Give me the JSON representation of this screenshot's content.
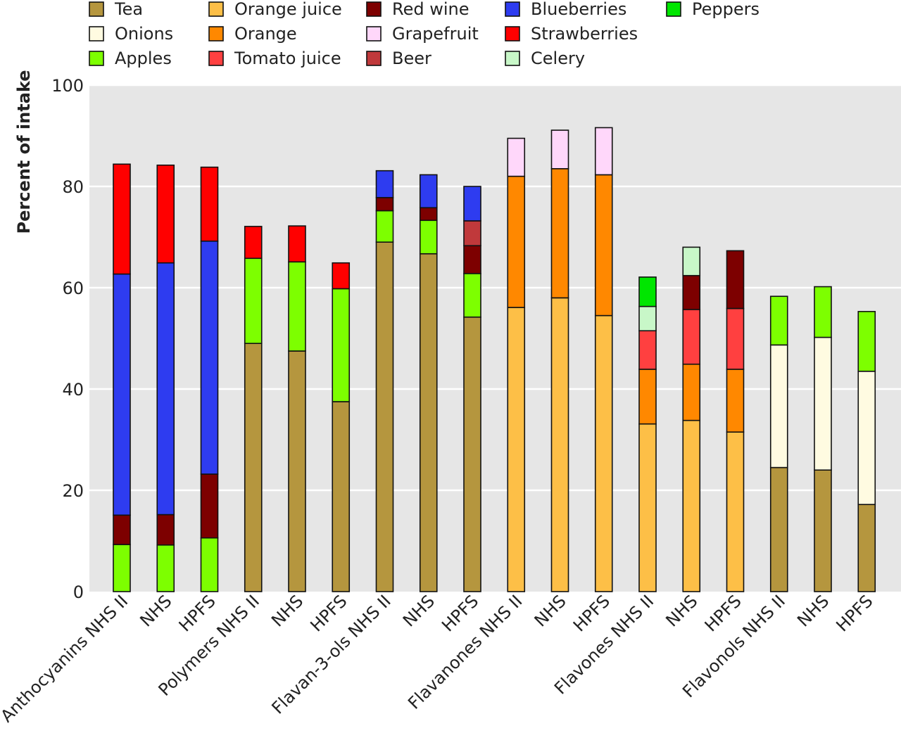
{
  "chart_data": {
    "type": "bar",
    "stacked": true,
    "ylabel": "Percent of intake",
    "ylim": [
      0,
      100
    ],
    "yticks": [
      0,
      20,
      40,
      60,
      80,
      100
    ],
    "grid": true,
    "legend_position": "top",
    "categories": [
      "Anthocyanins NHS II",
      "NHS",
      "HPFS",
      "Polymers NHS II",
      "NHS",
      "HPFS",
      "Flavan-3-ols NHS II",
      "NHS",
      "HPFS",
      "Flavanones NHS II",
      "NHS",
      "HPFS",
      "Flavones NHS II",
      "NHS",
      "HPFS",
      "Flavonols NHS II",
      "NHS",
      "HPFS"
    ],
    "series": [
      {
        "name": "Tea",
        "color": "#b5963e",
        "values": [
          0,
          0,
          0,
          49,
          47.5,
          37.5,
          69,
          66.7,
          54.2,
          0,
          0,
          0,
          0,
          0,
          0,
          24.5,
          24,
          17.2
        ]
      },
      {
        "name": "Orange juice",
        "color": "#fdbf47",
        "values": [
          0,
          0,
          0,
          0,
          0,
          0,
          0,
          0,
          0,
          56.1,
          58,
          54.5,
          33.1,
          33.8,
          31.5,
          0,
          0,
          0
        ]
      },
      {
        "name": "Orange",
        "color": "#ff8800",
        "values": [
          0,
          0,
          0,
          0,
          0,
          0,
          0,
          0,
          0,
          25.9,
          25.5,
          27.8,
          10.8,
          11.1,
          12.4,
          0,
          0,
          0
        ]
      },
      {
        "name": "Onions",
        "color": "#fffbe1",
        "values": [
          0,
          0,
          0,
          0,
          0,
          0,
          0,
          0,
          0,
          0,
          0,
          0,
          0,
          0,
          0,
          24.2,
          26.2,
          26.3
        ]
      },
      {
        "name": "Apples",
        "color": "#7dff00",
        "values": [
          9.3,
          9.2,
          10.6,
          16.8,
          17.6,
          22.3,
          6.2,
          6.6,
          8.6,
          0,
          0,
          0,
          0,
          0,
          0,
          9.6,
          10,
          11.8
        ]
      },
      {
        "name": "Tomato juice",
        "color": "#ff4040",
        "values": [
          0,
          0,
          0,
          0,
          0,
          0,
          0,
          0,
          0,
          0,
          0,
          0,
          7.6,
          10.8,
          12,
          0,
          0,
          0
        ]
      },
      {
        "name": "Red wine",
        "color": "#7d0000",
        "values": [
          5.8,
          6,
          12.6,
          0,
          0,
          0,
          2.6,
          2.5,
          5.5,
          0,
          0,
          0,
          0,
          6.7,
          11.4,
          0,
          0,
          0
        ]
      },
      {
        "name": "Beer",
        "color": "#c0393b",
        "values": [
          0,
          0,
          0,
          0,
          0,
          0,
          0,
          0,
          4.9,
          0,
          0,
          0,
          0,
          0,
          0,
          0,
          0,
          0
        ]
      },
      {
        "name": "Celery",
        "color": "#c8f7c8",
        "values": [
          0,
          0,
          0,
          0,
          0,
          0,
          0,
          0,
          0,
          0,
          0,
          0,
          4.8,
          5.6,
          0,
          0,
          0,
          0
        ]
      },
      {
        "name": "Peppers",
        "color": "#00e600",
        "values": [
          0,
          0,
          0,
          0,
          0,
          0,
          0,
          0,
          0,
          0,
          0,
          0,
          5.8,
          0,
          0,
          0,
          0,
          0
        ]
      },
      {
        "name": "Blueberries",
        "color": "#2e3cf0",
        "values": [
          47.6,
          49.7,
          46,
          0,
          0,
          0,
          5.3,
          6.5,
          6.8,
          0,
          0,
          0,
          0,
          0,
          0,
          0,
          0,
          0
        ]
      },
      {
        "name": "Grapefruit",
        "color": "#ffd7fa",
        "values": [
          0,
          0,
          0,
          0,
          0,
          0,
          0,
          0,
          0,
          7.5,
          7.6,
          9.3,
          0,
          0,
          0,
          0,
          0,
          0
        ]
      },
      {
        "name": "Strawberries",
        "color": "#ff0000",
        "values": [
          21.7,
          19.3,
          14.6,
          6.3,
          7.1,
          5.1,
          0,
          0,
          0,
          0,
          0,
          0,
          0,
          0,
          0,
          0,
          0,
          0
        ]
      }
    ],
    "legend": [
      {
        "name": "Tea",
        "color": "#b5963e"
      },
      {
        "name": "Onions",
        "color": "#fffbe1"
      },
      {
        "name": "Apples",
        "color": "#7dff00"
      },
      {
        "name": "Orange juice",
        "color": "#fdbf47"
      },
      {
        "name": "Orange",
        "color": "#ff8800"
      },
      {
        "name": "Tomato juice",
        "color": "#ff4040"
      },
      {
        "name": "Red wine",
        "color": "#7d0000"
      },
      {
        "name": "Grapefruit",
        "color": "#ffd7fa"
      },
      {
        "name": "Beer",
        "color": "#c0393b"
      },
      {
        "name": "Blueberries",
        "color": "#2e3cf0"
      },
      {
        "name": "Strawberries",
        "color": "#ff0000"
      },
      {
        "name": "Celery",
        "color": "#c8f7c8"
      },
      {
        "name": "Peppers",
        "color": "#00e600"
      }
    ]
  }
}
